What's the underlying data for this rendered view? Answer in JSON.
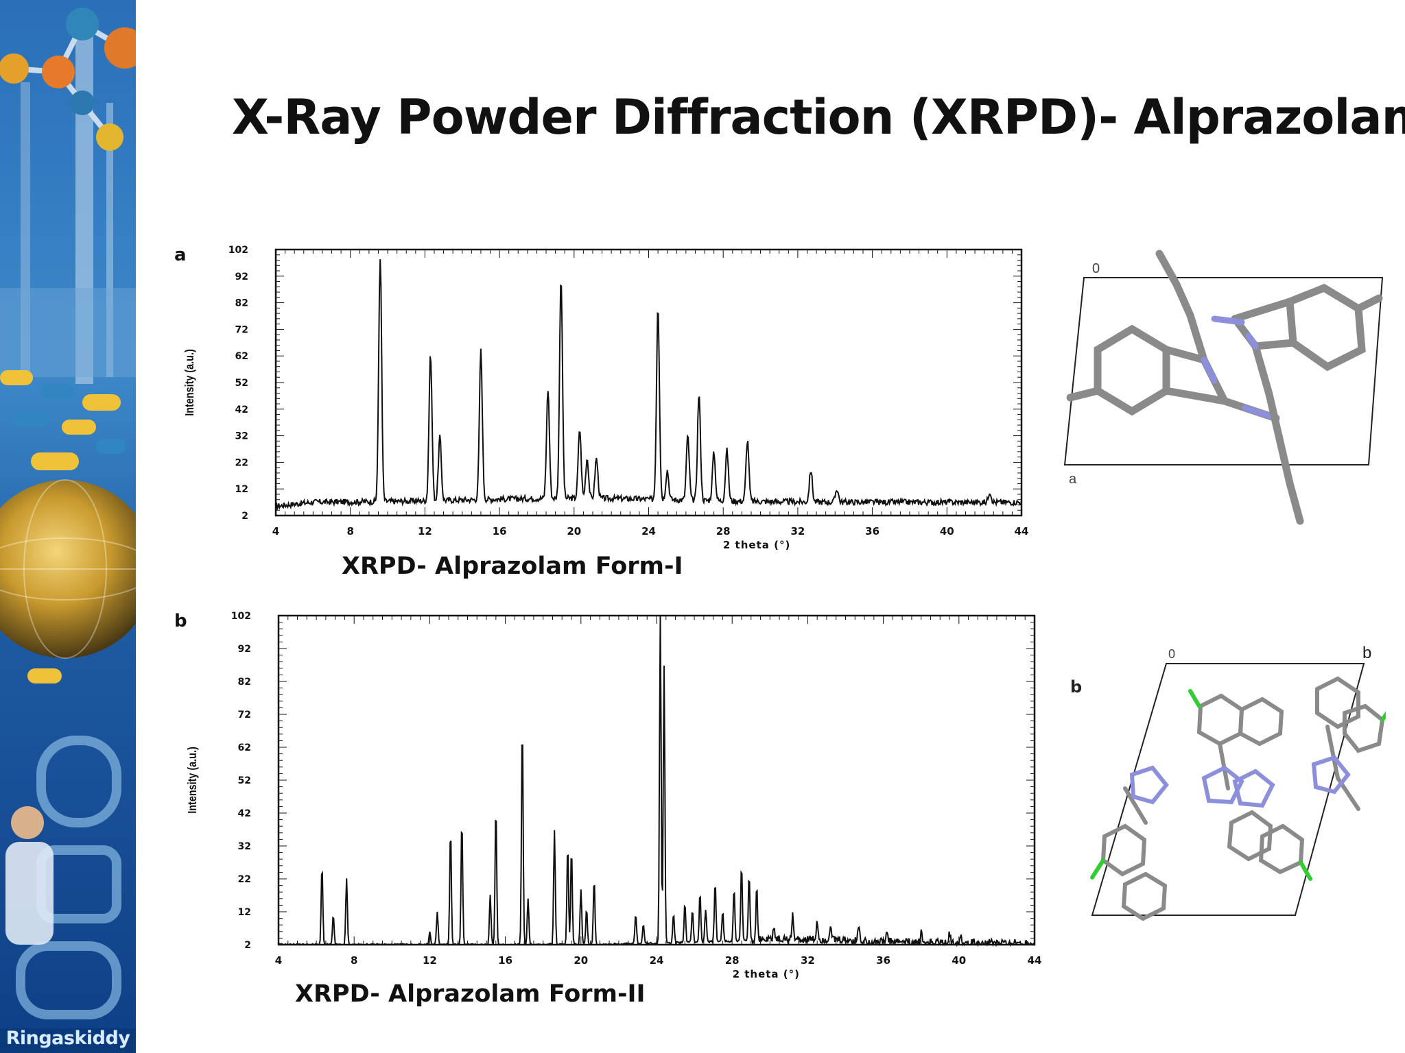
{
  "slide": {
    "title": "X-Ray Powder Diffraction (XRPD)- Alprazolam",
    "sidebar_text": "Ringaskiddy"
  },
  "captions": {
    "form1": "XRPD- Alprazolam Form-I",
    "form2": "XRPD- Alprazolam Form-II"
  },
  "cell_a": {
    "origin": "0",
    "axis": "a"
  },
  "cell_b": {
    "panel": "b",
    "origin": "0",
    "axis": "b"
  },
  "colors": {
    "line": "#111111",
    "bond": "#8a8a8a",
    "nitrogen": "#8c8fdc",
    "chlorine": "#33cc33",
    "cell": "#222222"
  },
  "chart_data": [
    {
      "type": "line",
      "panel_label": "a",
      "xlabel": "2 theta (°)",
      "ylabel": "Intensity (a.u.)",
      "xlim": [
        4,
        44
      ],
      "ylim": [
        2,
        102
      ],
      "xticks": [
        4,
        8,
        12,
        16,
        20,
        24,
        28,
        32,
        36,
        40,
        44
      ],
      "yticks": [
        2,
        12,
        22,
        32,
        42,
        52,
        62,
        72,
        82,
        92,
        102
      ],
      "baseline": 7,
      "peaks": [
        {
          "x": 9.6,
          "y": 99
        },
        {
          "x": 12.3,
          "y": 62
        },
        {
          "x": 12.8,
          "y": 31
        },
        {
          "x": 15.0,
          "y": 63
        },
        {
          "x": 18.6,
          "y": 48
        },
        {
          "x": 19.3,
          "y": 90
        },
        {
          "x": 20.3,
          "y": 33
        },
        {
          "x": 20.7,
          "y": 22
        },
        {
          "x": 21.2,
          "y": 22
        },
        {
          "x": 24.5,
          "y": 80
        },
        {
          "x": 25.0,
          "y": 18
        },
        {
          "x": 26.1,
          "y": 31
        },
        {
          "x": 26.7,
          "y": 47
        },
        {
          "x": 27.5,
          "y": 25
        },
        {
          "x": 28.2,
          "y": 26
        },
        {
          "x": 29.3,
          "y": 30
        },
        {
          "x": 32.7,
          "y": 19
        },
        {
          "x": 34.1,
          "y": 12
        },
        {
          "x": 42.3,
          "y": 11
        }
      ]
    },
    {
      "type": "line",
      "panel_label": "b",
      "xlabel": "2 theta (°)",
      "ylabel": "Intensity (a.u.)",
      "xlim": [
        4,
        44
      ],
      "ylim": [
        2,
        102
      ],
      "xticks": [
        4,
        8,
        12,
        16,
        20,
        24,
        28,
        32,
        36,
        40,
        44
      ],
      "yticks": [
        2,
        12,
        22,
        32,
        42,
        52,
        62,
        72,
        82,
        92,
        102
      ],
      "baseline": 2,
      "peaks": [
        {
          "x": 6.3,
          "y": 26
        },
        {
          "x": 6.9,
          "y": 11
        },
        {
          "x": 7.6,
          "y": 22
        },
        {
          "x": 12.0,
          "y": 6
        },
        {
          "x": 12.4,
          "y": 12
        },
        {
          "x": 13.1,
          "y": 37
        },
        {
          "x": 13.7,
          "y": 40
        },
        {
          "x": 15.2,
          "y": 17
        },
        {
          "x": 15.5,
          "y": 44
        },
        {
          "x": 16.9,
          "y": 70
        },
        {
          "x": 17.2,
          "y": 16
        },
        {
          "x": 18.6,
          "y": 37
        },
        {
          "x": 19.3,
          "y": 32
        },
        {
          "x": 19.5,
          "y": 31
        },
        {
          "x": 20.0,
          "y": 19
        },
        {
          "x": 20.3,
          "y": 13
        },
        {
          "x": 20.7,
          "y": 22
        },
        {
          "x": 22.9,
          "y": 11
        },
        {
          "x": 23.3,
          "y": 8
        },
        {
          "x": 24.2,
          "y": 102
        },
        {
          "x": 24.4,
          "y": 86
        },
        {
          "x": 24.9,
          "y": 11
        },
        {
          "x": 25.5,
          "y": 14
        },
        {
          "x": 25.9,
          "y": 12
        },
        {
          "x": 26.3,
          "y": 17
        },
        {
          "x": 26.6,
          "y": 12
        },
        {
          "x": 27.1,
          "y": 20
        },
        {
          "x": 27.5,
          "y": 11
        },
        {
          "x": 28.1,
          "y": 18
        },
        {
          "x": 28.5,
          "y": 25
        },
        {
          "x": 28.9,
          "y": 22
        },
        {
          "x": 29.3,
          "y": 18
        },
        {
          "x": 30.2,
          "y": 6
        },
        {
          "x": 31.2,
          "y": 10
        },
        {
          "x": 32.5,
          "y": 8
        },
        {
          "x": 33.2,
          "y": 7
        },
        {
          "x": 34.7,
          "y": 7
        },
        {
          "x": 36.2,
          "y": 5
        },
        {
          "x": 38.0,
          "y": 5
        },
        {
          "x": 39.5,
          "y": 5
        },
        {
          "x": 40.1,
          "y": 5
        }
      ]
    }
  ]
}
